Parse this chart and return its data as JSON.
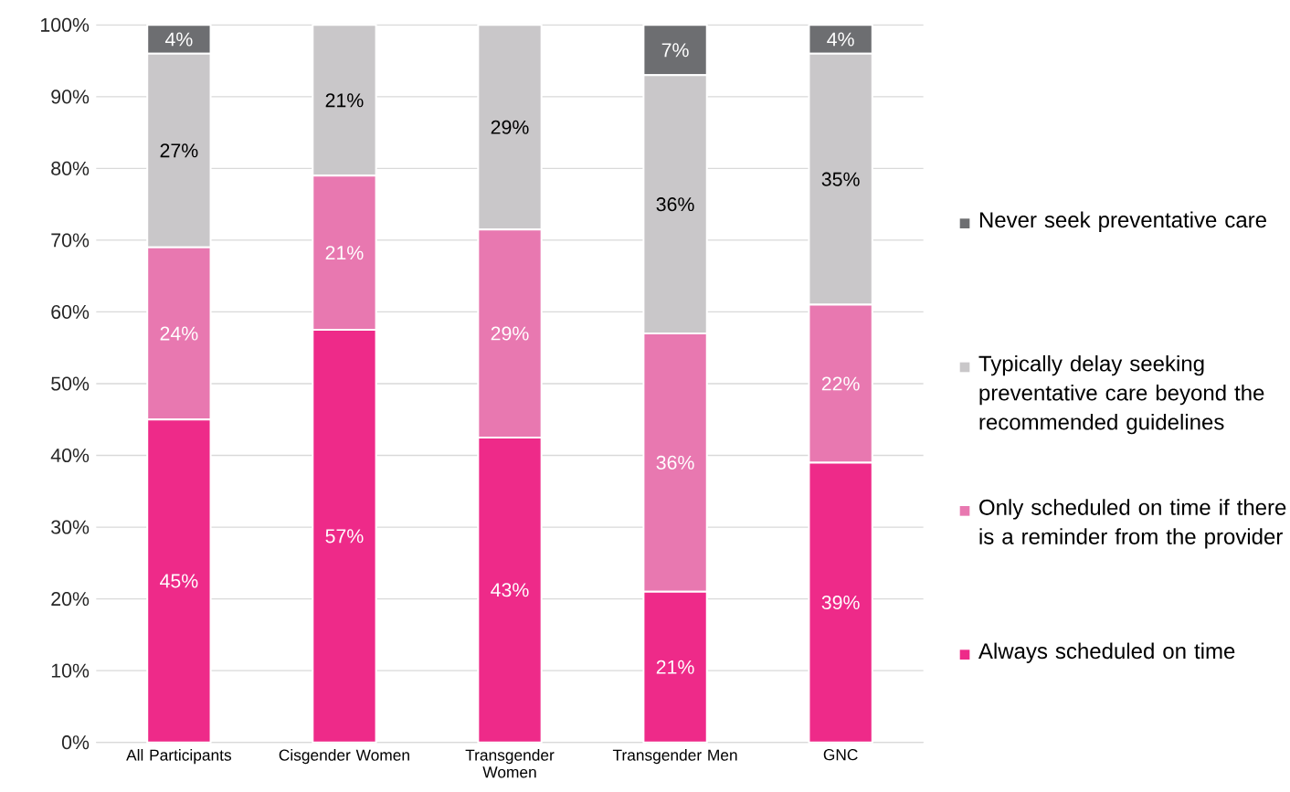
{
  "chart_data": {
    "type": "bar",
    "stacked": true,
    "grid": "y",
    "legend": "right",
    "categories": [
      "All Participants",
      "Cisgender Women",
      "Transgender Women",
      "Transgender Men",
      "GNC"
    ],
    "series": [
      {
        "name": "Always scheduled on time",
        "color": "#ee2a89",
        "values": [
          45,
          57.5,
          42.5,
          21,
          39
        ],
        "value_labels": [
          "45%",
          "57%",
          "43%",
          "21%",
          "39%"
        ]
      },
      {
        "name": "Only scheduled on time if there is a reminder from the provider",
        "color": "#e878b0",
        "values": [
          24,
          21.5,
          29,
          36,
          22
        ],
        "value_labels": [
          "24%",
          "21%",
          "29%",
          "36%",
          "22%"
        ]
      },
      {
        "name": "Typically delay seeking preventative care beyond the recommended guidelines",
        "color": "#c9c7c9",
        "values": [
          27,
          21,
          28.5,
          36,
          35
        ],
        "value_labels": [
          "27%",
          "21%",
          "29%",
          "36%",
          "35%"
        ]
      },
      {
        "name": "Never seek preventative care",
        "color": "#6d6e71",
        "values": [
          4,
          null,
          null,
          7,
          4
        ],
        "value_labels": [
          "4%",
          null,
          null,
          "7%",
          "4%"
        ]
      }
    ],
    "ylim": [
      0,
      100
    ],
    "yticks": [
      {
        "value": 0,
        "label": "0%"
      },
      {
        "value": 10,
        "label": "10%"
      },
      {
        "value": 20,
        "label": "20%"
      },
      {
        "value": 30,
        "label": "30%"
      },
      {
        "value": 40,
        "label": "40%"
      },
      {
        "value": 50,
        "label": "50%"
      },
      {
        "value": 60,
        "label": "60%"
      },
      {
        "value": 70,
        "label": "70%"
      },
      {
        "value": 80,
        "label": "80%"
      },
      {
        "value": 90,
        "label": "90%"
      },
      {
        "value": 100,
        "label": "100%"
      }
    ]
  }
}
